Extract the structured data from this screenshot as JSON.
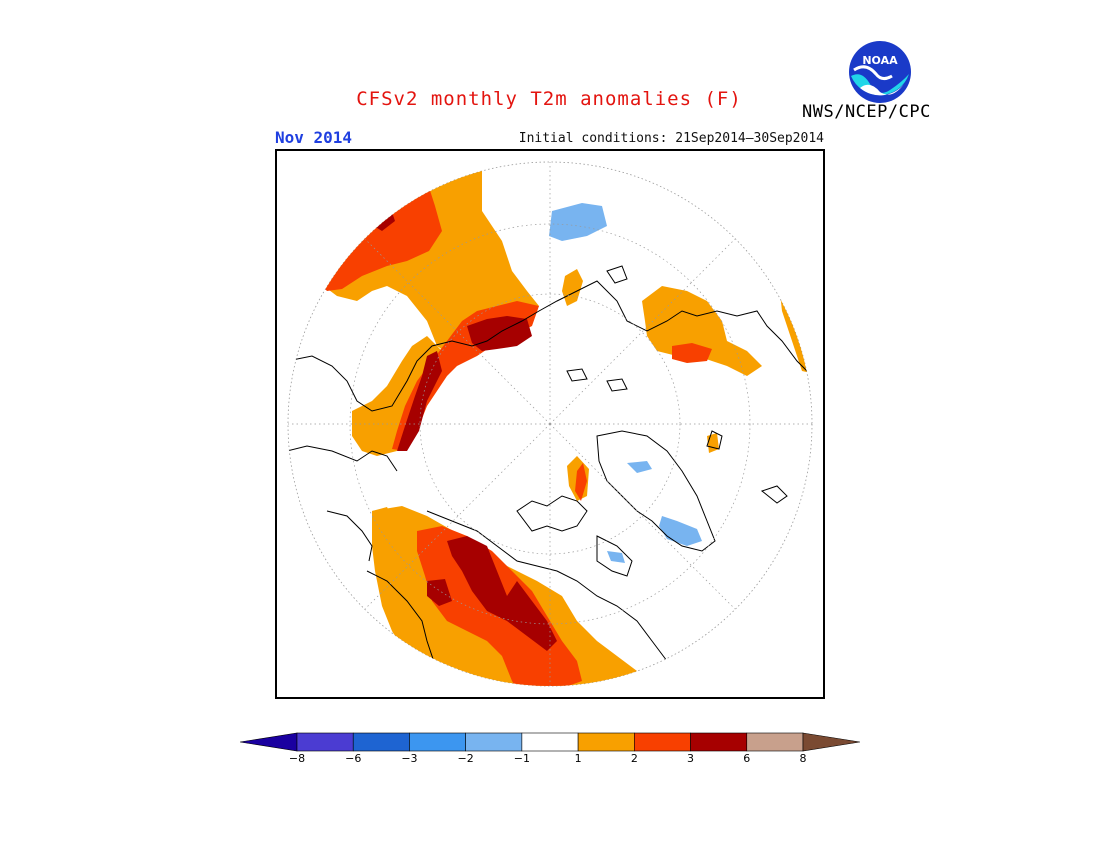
{
  "header": {
    "title": "CFSv2 monthly T2m anomalies (F)",
    "month": "Nov 2014",
    "initial_conditions": "Initial conditions: 21Sep2014—30Sep2014",
    "agency": "NWS/NCEP/CPC",
    "logo_text": "NOAA",
    "title_color": "#e3140f",
    "month_color": "#1f3fe0"
  },
  "map": {
    "projection": "north-polar-stereographic",
    "fill_colors": {
      "cold_light": "#78b4f0",
      "warm_1_2": "#f8a000",
      "warm_2_3": "#f84000",
      "warm_3_6": "#a60000"
    }
  },
  "colorbar": {
    "units": "F",
    "tick_labels": [
      "−8",
      "−6",
      "−3",
      "−2",
      "−1",
      "1",
      "2",
      "3",
      "6",
      "8"
    ],
    "bins": [
      {
        "color": "#1a00a0"
      },
      {
        "color": "#4b3cd2"
      },
      {
        "color": "#1e64d2"
      },
      {
        "color": "#3c96f0"
      },
      {
        "color": "#78b4f0"
      },
      {
        "color": "#ffffff"
      },
      {
        "color": "#f8a000"
      },
      {
        "color": "#f84000"
      },
      {
        "color": "#a60000"
      },
      {
        "color": "#c8a08c"
      },
      {
        "color": "#7a4a32"
      }
    ]
  }
}
